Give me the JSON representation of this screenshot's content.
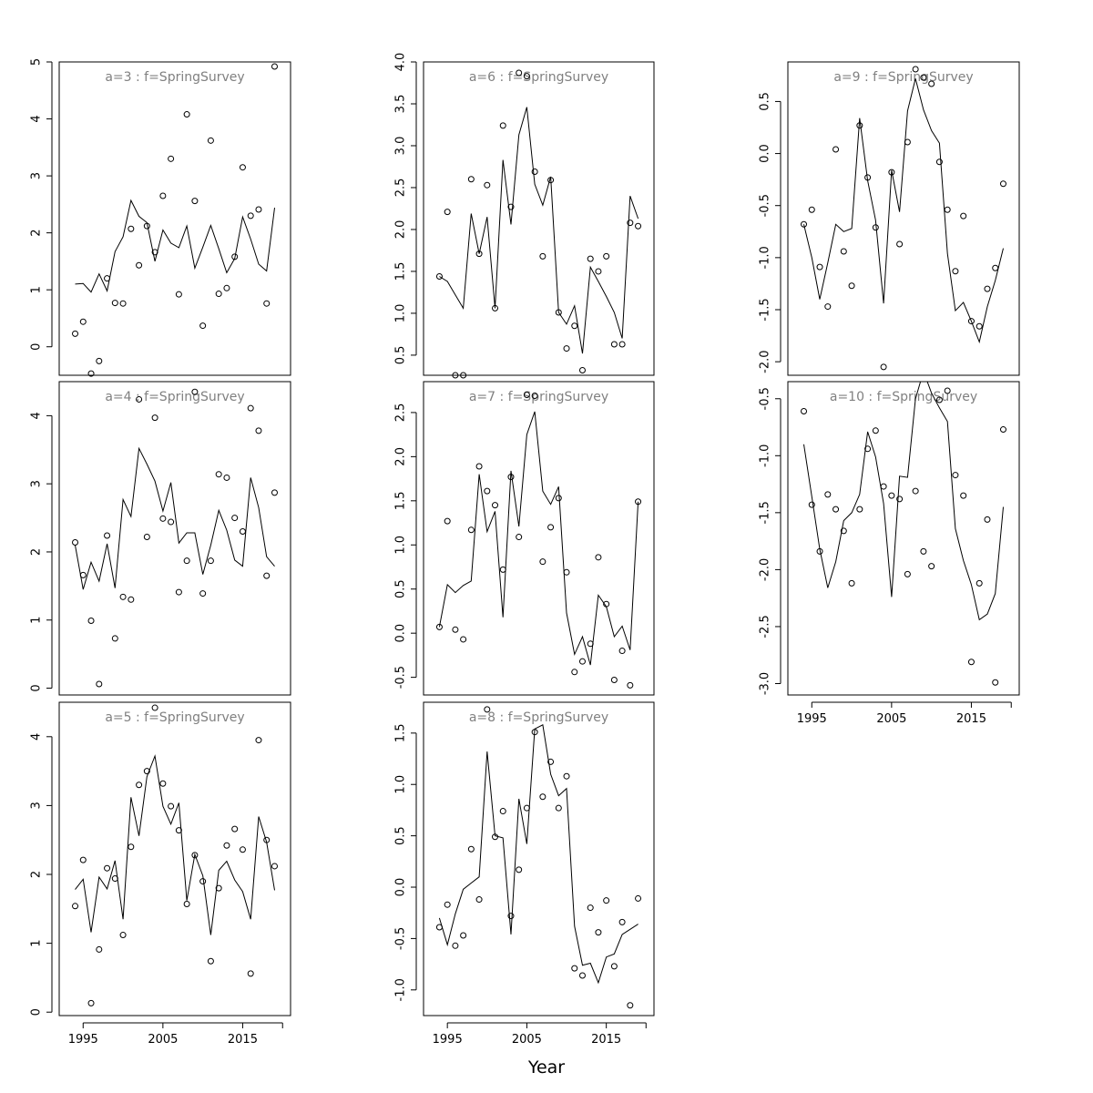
{
  "chart_data": {
    "type": "scatter",
    "xlabel": "Year",
    "x_ticks": [
      1995,
      2005,
      2015
    ],
    "xlim": [
      1992,
      2021
    ],
    "years": [
      1994,
      1995,
      1996,
      1997,
      1998,
      1999,
      2000,
      2001,
      2002,
      2003,
      2004,
      2005,
      2006,
      2007,
      2008,
      2009,
      2010,
      2011,
      2012,
      2013,
      2014,
      2015,
      2016,
      2017,
      2018,
      2019
    ],
    "panels": [
      {
        "title": "a=3  :  f=SpringSurvey",
        "ylim": [
          -0.5,
          5.0
        ],
        "y_ticks": [
          0,
          1,
          2,
          3,
          4,
          5
        ],
        "observed": [
          0.23,
          0.44,
          -0.47,
          -0.25,
          1.2,
          0.77,
          0.76,
          2.07,
          1.43,
          2.12,
          1.66,
          2.65,
          3.3,
          0.92,
          4.08,
          2.56,
          0.37,
          3.62,
          0.93,
          1.03,
          1.58,
          3.15,
          2.3,
          2.41,
          0.76,
          4.92
        ],
        "fitted": [
          1.1,
          1.11,
          0.96,
          1.28,
          0.98,
          1.67,
          1.93,
          2.57,
          2.29,
          2.18,
          1.5,
          2.05,
          1.82,
          1.74,
          2.12,
          1.38,
          1.75,
          2.13,
          1.72,
          1.3,
          1.55,
          2.28,
          1.89,
          1.45,
          1.33,
          2.44
        ]
      },
      {
        "title": "a=4  :  f=SpringSurvey",
        "ylim": [
          -0.1,
          4.5
        ],
        "y_ticks": [
          0,
          1,
          2,
          3,
          4
        ],
        "observed": [
          2.14,
          1.66,
          0.99,
          0.06,
          2.24,
          0.73,
          1.34,
          1.3,
          4.24,
          2.22,
          3.97,
          2.49,
          2.44,
          1.41,
          1.87,
          4.35,
          1.39,
          1.87,
          3.14,
          3.09,
          2.5,
          2.3,
          4.11,
          3.78,
          1.65,
          2.87
        ],
        "fitted": [
          2.1,
          1.45,
          1.85,
          1.57,
          2.12,
          1.47,
          2.77,
          2.52,
          3.52,
          3.29,
          3.04,
          2.6,
          3.02,
          2.13,
          2.28,
          2.28,
          1.67,
          2.1,
          2.61,
          2.32,
          1.88,
          1.79,
          3.09,
          2.65,
          1.93,
          1.79
        ]
      },
      {
        "title": "a=5  :  f=SpringSurvey",
        "ylim": [
          -0.05,
          4.5
        ],
        "y_ticks": [
          0,
          1,
          2,
          3,
          4
        ],
        "observed": [
          1.54,
          2.21,
          0.13,
          0.91,
          2.09,
          1.94,
          1.12,
          2.4,
          3.3,
          3.5,
          4.42,
          3.32,
          2.99,
          2.64,
          1.57,
          2.28,
          1.9,
          0.74,
          1.8,
          2.42,
          2.66,
          2.36,
          0.56,
          3.95,
          2.5,
          2.12
        ],
        "fitted": [
          1.78,
          1.93,
          1.16,
          1.96,
          1.79,
          2.2,
          1.35,
          3.12,
          2.56,
          3.42,
          3.72,
          2.99,
          2.73,
          3.04,
          1.62,
          2.29,
          1.98,
          1.12,
          2.06,
          2.19,
          1.92,
          1.75,
          1.35,
          2.84,
          2.47,
          1.77
        ]
      },
      {
        "title": "a=6  :  f=SpringSurvey",
        "ylim": [
          0.26,
          4.0
        ],
        "y_ticks": [
          0.5,
          1.0,
          1.5,
          2.0,
          2.5,
          3.0,
          3.5,
          4.0
        ],
        "observed": [
          1.44,
          2.21,
          0.26,
          0.26,
          2.6,
          1.71,
          2.53,
          1.06,
          3.24,
          2.27,
          3.87,
          3.83,
          2.69,
          1.68,
          2.59,
          1.01,
          0.58,
          0.85,
          0.32,
          1.65,
          1.5,
          1.68,
          0.63,
          0.63,
          2.08,
          2.04
        ],
        "fitted": [
          1.44,
          1.38,
          1.22,
          1.06,
          2.19,
          1.71,
          2.15,
          1.06,
          2.83,
          2.06,
          3.13,
          3.46,
          2.54,
          2.29,
          2.63,
          1.01,
          0.87,
          1.09,
          0.52,
          1.55,
          1.38,
          1.2,
          1.01,
          0.7,
          2.4,
          2.13
        ]
      },
      {
        "title": "a=7  :  f=SpringSurvey",
        "ylim": [
          -0.7,
          2.85
        ],
        "y_ticks": [
          -0.5,
          0.0,
          0.5,
          1.0,
          1.5,
          2.0,
          2.5
        ],
        "observed": [
          0.07,
          1.27,
          0.04,
          -0.07,
          1.17,
          1.89,
          1.61,
          1.45,
          0.72,
          1.77,
          1.09,
          2.7,
          2.69,
          0.81,
          1.2,
          1.53,
          0.69,
          -0.44,
          -0.32,
          -0.12,
          0.86,
          0.33,
          -0.53,
          -0.2,
          -0.59,
          1.49
        ],
        "fitted": [
          0.07,
          0.55,
          0.46,
          0.54,
          0.59,
          1.8,
          1.15,
          1.38,
          0.18,
          1.84,
          1.21,
          2.25,
          2.51,
          1.61,
          1.46,
          1.66,
          0.23,
          -0.24,
          -0.04,
          -0.36,
          0.43,
          0.3,
          -0.04,
          0.08,
          -0.19,
          1.49
        ]
      },
      {
        "title": "a=8  :  f=SpringSurvey",
        "ylim": [
          -1.25,
          1.8
        ],
        "y_ticks": [
          -1.0,
          -0.5,
          0.0,
          0.5,
          1.0,
          1.5
        ],
        "observed": [
          -0.39,
          -0.17,
          -0.57,
          -0.47,
          0.37,
          -0.12,
          1.73,
          0.49,
          0.74,
          -0.28,
          0.17,
          0.77,
          1.51,
          0.88,
          1.22,
          0.77,
          1.08,
          -0.79,
          -0.86,
          -0.2,
          -0.44,
          -0.13,
          -0.77,
          -0.34,
          -1.15,
          -0.11
        ],
        "fitted": [
          -0.3,
          -0.56,
          -0.26,
          -0.02,
          0.04,
          0.1,
          1.32,
          0.5,
          0.48,
          -0.46,
          0.86,
          0.42,
          1.54,
          1.58,
          1.1,
          0.89,
          0.96,
          -0.38,
          -0.76,
          -0.74,
          -0.93,
          -0.68,
          -0.65,
          -0.46,
          -0.41,
          -0.36
        ]
      },
      {
        "title": "a=9  :  f=SpringSurvey",
        "ylim": [
          -2.13,
          0.88
        ],
        "y_ticks": [
          -2.0,
          -1.5,
          -1.0,
          -0.5,
          0.0,
          0.5
        ],
        "observed": [
          -0.68,
          -0.54,
          -1.09,
          -1.47,
          0.04,
          -0.94,
          -1.27,
          0.27,
          -0.23,
          -0.71,
          -2.05,
          -0.18,
          -0.87,
          0.11,
          0.81,
          0.73,
          0.67,
          -0.08,
          -0.54,
          -1.13,
          -0.6,
          -1.61,
          -1.66,
          -1.3,
          -1.1,
          -0.29
        ],
        "fitted": [
          -0.68,
          -1.0,
          -1.4,
          -1.05,
          -0.68,
          -0.75,
          -0.72,
          0.34,
          -0.26,
          -0.64,
          -1.44,
          -0.16,
          -0.56,
          0.41,
          0.72,
          0.42,
          0.22,
          0.1,
          -0.96,
          -1.51,
          -1.43,
          -1.61,
          -1.81,
          -1.47,
          -1.22,
          -0.91
        ]
      },
      {
        "title": "a=10  :  f=SpringSurvey",
        "ylim": [
          -3.1,
          -0.35
        ],
        "y_ticks": [
          -3.0,
          -2.5,
          -2.0,
          -1.5,
          -1.0,
          -0.5
        ],
        "observed": [
          -0.61,
          -1.43,
          -1.84,
          -1.34,
          -1.47,
          -1.66,
          -2.12,
          -1.47,
          -0.94,
          -0.78,
          -1.27,
          -1.35,
          -1.38,
          -2.04,
          -1.31,
          -1.84,
          -1.97,
          -0.51,
          -0.43,
          -1.17,
          -1.35,
          -2.81,
          -2.12,
          -1.56,
          -2.99,
          -0.77
        ],
        "fitted": [
          -0.9,
          -1.36,
          -1.82,
          -2.16,
          -1.93,
          -1.57,
          -1.5,
          -1.34,
          -0.79,
          -1.01,
          -1.42,
          -2.24,
          -1.18,
          -1.19,
          -0.5,
          -0.26,
          -0.45,
          -0.58,
          -0.7,
          -1.64,
          -1.92,
          -2.13,
          -2.44,
          -2.39,
          -2.21,
          -1.45
        ]
      }
    ]
  }
}
